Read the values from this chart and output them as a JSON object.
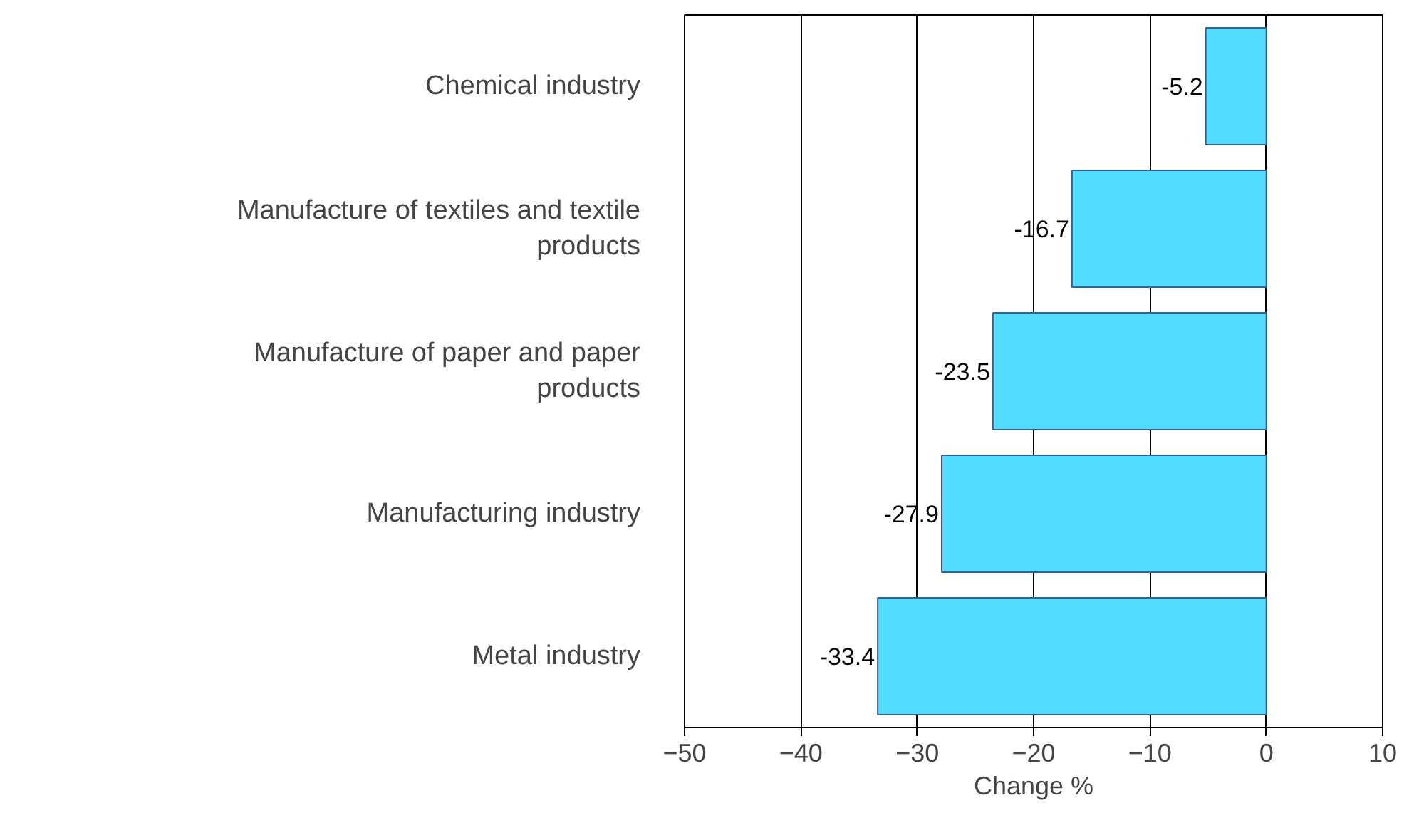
{
  "chart_data": {
    "type": "bar",
    "orientation": "horizontal",
    "categories": [
      "Chemical industry",
      "Manufacture of textiles and textile products",
      "Manufacture of paper and paper products",
      "Manufacturing industry",
      "Metal industry"
    ],
    "values": [
      -5.2,
      -16.7,
      -23.5,
      -27.9,
      -33.4
    ],
    "color": "#55ddff",
    "xlabel": "Change %",
    "xlim": [
      -50,
      10
    ],
    "xticks": [
      -50,
      -40,
      -30,
      -20,
      -10,
      0,
      10
    ],
    "grid": "x",
    "data_labels": true
  }
}
